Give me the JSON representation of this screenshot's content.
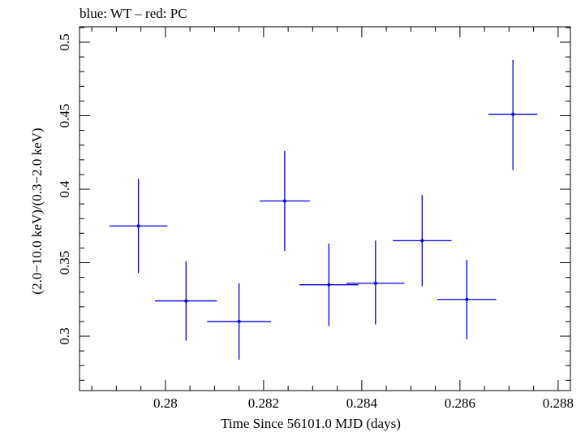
{
  "chart_data": {
    "type": "scatter",
    "title": "blue: WT – red: PC",
    "xlabel": "Time Since 56101.0 MJD (days)",
    "ylabel": "(2.0−10.0 keV)/(0.3−2.0 keV)",
    "xlim": [
      0.27825,
      0.28825
    ],
    "ylim": [
      0.263,
      0.5105
    ],
    "x_ticks": [
      0.28,
      0.282,
      0.284,
      0.286,
      0.288
    ],
    "x_tick_labels": [
      "0.28",
      "0.282",
      "0.284",
      "0.286",
      "0.288"
    ],
    "y_ticks": [
      0.3,
      0.35,
      0.4,
      0.45,
      0.5
    ],
    "y_tick_labels": [
      "0.3",
      "0.35",
      "0.4",
      "0.45",
      "0.5"
    ],
    "grid": false,
    "series": [
      {
        "color": "#0000dd",
        "points": [
          {
            "x": 0.27945,
            "y": 0.375,
            "xerr": 0.00059,
            "yerr_low": 0.032,
            "yerr_high": 0.032
          },
          {
            "x": 0.28042,
            "y": 0.324,
            "xerr": 0.00063,
            "yerr_low": 0.027,
            "yerr_high": 0.027
          },
          {
            "x": 0.2815,
            "y": 0.31,
            "xerr": 0.00065,
            "yerr_low": 0.026,
            "yerr_high": 0.026
          },
          {
            "x": 0.28243,
            "y": 0.392,
            "xerr": 0.00051,
            "yerr_low": 0.034,
            "yerr_high": 0.034
          },
          {
            "x": 0.28333,
            "y": 0.335,
            "xerr": 0.0006,
            "yerr_low": 0.028,
            "yerr_high": 0.028
          },
          {
            "x": 0.28428,
            "y": 0.336,
            "xerr": 0.00059,
            "yerr_low": 0.028,
            "yerr_high": 0.029
          },
          {
            "x": 0.28523,
            "y": 0.365,
            "xerr": 0.0006,
            "yerr_low": 0.031,
            "yerr_high": 0.031
          },
          {
            "x": 0.28614,
            "y": 0.325,
            "xerr": 0.0006,
            "yerr_low": 0.027,
            "yerr_high": 0.027
          },
          {
            "x": 0.28708,
            "y": 0.451,
            "xerr": 0.0005,
            "yerr_low": 0.038,
            "yerr_high": 0.037
          }
        ]
      }
    ]
  }
}
